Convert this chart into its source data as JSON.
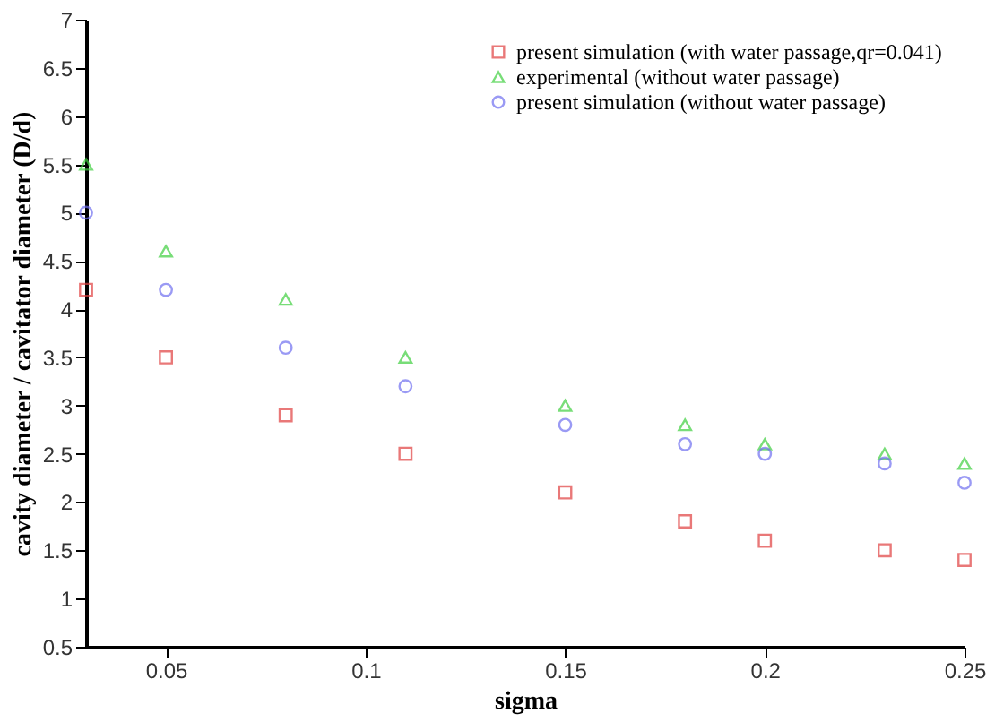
{
  "chart_data": {
    "type": "scatter",
    "xlabel": "sigma",
    "ylabel": "cavity diameter / cavitator diameter (D/d)",
    "x": [
      0.03,
      0.05,
      0.08,
      0.11,
      0.15,
      0.18,
      0.2,
      0.23,
      0.25
    ],
    "series": [
      {
        "name": "present simulation (with water passage,qr=0.041)",
        "color": "#e04040",
        "marker": "square",
        "values": [
          4.2,
          3.5,
          2.9,
          2.5,
          2.1,
          1.8,
          1.6,
          1.5,
          1.4
        ]
      },
      {
        "name": "experimental (without water passage)",
        "color": "#40d040",
        "marker": "triangle",
        "values": [
          5.5,
          4.6,
          4.1,
          3.5,
          3.0,
          2.8,
          2.6,
          2.5,
          2.4
        ]
      },
      {
        "name": "present simulation (without water passage)",
        "color": "#7070f0",
        "marker": "circle",
        "values": [
          5.0,
          4.2,
          3.6,
          3.2,
          2.8,
          2.6,
          2.5,
          2.4,
          2.2
        ]
      }
    ],
    "xlim": [
      0.03,
      0.25
    ],
    "xticks": [
      0.05,
      0.1,
      0.15,
      0.2,
      0.25
    ],
    "ylim": [
      0.5,
      7
    ],
    "yticks": [
      0.5,
      1,
      1.5,
      2,
      2.5,
      3,
      3.5,
      4,
      4.5,
      5,
      5.5,
      6,
      6.5,
      7
    ],
    "grid": false,
    "legend": "top right"
  }
}
